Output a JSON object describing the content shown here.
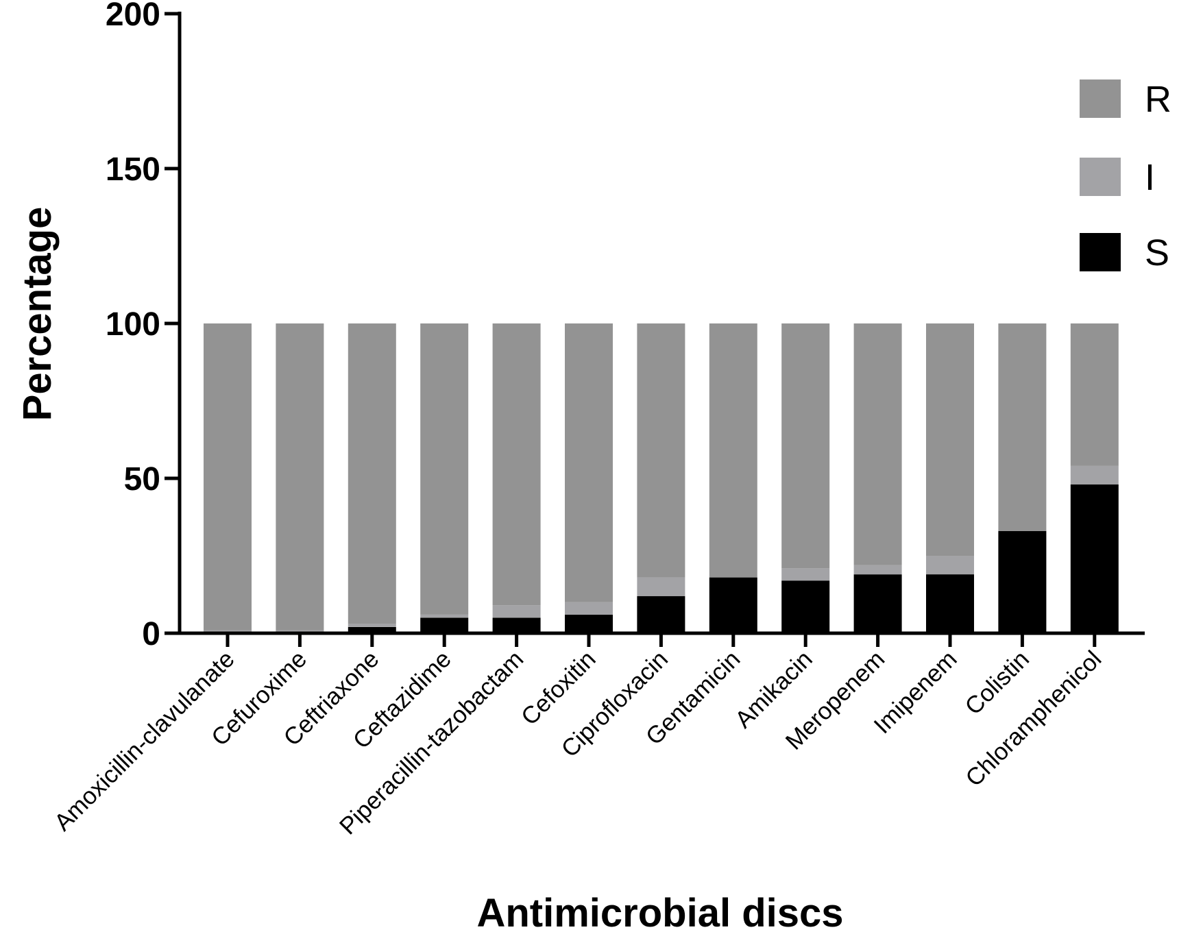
{
  "chart_data": {
    "type": "bar",
    "stacked": true,
    "xlabel": "Antimicrobial discs",
    "ylabel": "Percentage",
    "ylim": [
      0,
      200
    ],
    "yticks": [
      "0",
      "50",
      "100",
      "150",
      "200"
    ],
    "grid": false,
    "legend_position": "top-right",
    "categories": [
      "Amoxicillin-clavulanate",
      "Cefuroxime",
      "Ceftriaxone",
      "Ceftazidime",
      "Piperacillin-tazobactam",
      "Cefoxitin",
      "Ciprofloxacin",
      "Gentamicin",
      "Amikacin",
      "Meropenem",
      "Imipenem",
      "Colistin",
      "Chloramphenicol"
    ],
    "series": [
      {
        "name": "S",
        "color": "#000000",
        "values": [
          0,
          0,
          2,
          5,
          5,
          6,
          12,
          18,
          17,
          19,
          19,
          33,
          48
        ]
      },
      {
        "name": "I",
        "color": "#a3a3a6",
        "values": [
          1,
          1,
          1,
          1,
          4,
          4,
          6,
          0,
          4,
          3,
          6,
          0,
          6
        ]
      },
      {
        "name": "R",
        "color": "#939393",
        "values": [
          99,
          99,
          97,
          94,
          91,
          90,
          82,
          82,
          79,
          78,
          75,
          67,
          46
        ]
      }
    ],
    "legend_order": [
      "R",
      "I",
      "S"
    ]
  }
}
